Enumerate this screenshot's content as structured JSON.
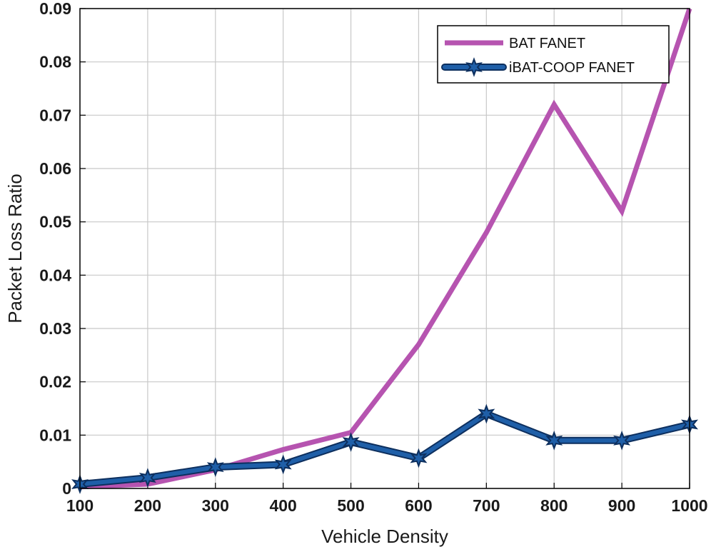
{
  "chart_data": {
    "type": "line",
    "title": "",
    "xlabel": "Vehicle Density",
    "ylabel": "Packet Loss Ratio",
    "x": [
      100,
      200,
      300,
      400,
      500,
      600,
      700,
      800,
      900,
      1000
    ],
    "xlim": [
      100,
      1000
    ],
    "ylim": [
      0,
      0.09
    ],
    "x_ticks": [
      "100",
      "200",
      "300",
      "400",
      "500",
      "600",
      "700",
      "800",
      "900",
      "1000"
    ],
    "y_ticks": [
      "0",
      "0.01",
      "0.02",
      "0.03",
      "0.04",
      "0.05",
      "0.06",
      "0.07",
      "0.08",
      "0.09"
    ],
    "grid": true,
    "legend_position": "top-right",
    "series": [
      {
        "name": "BAT FANET",
        "color": "#b654b0",
        "marker": "none",
        "values": [
          0.0003,
          0.0008,
          0.0035,
          0.0073,
          0.0105,
          0.027,
          0.048,
          0.072,
          0.052,
          0.09
        ]
      },
      {
        "name": "iBAT-COOP FANET",
        "color": "#1f5fa8",
        "marker": "star",
        "values": [
          0.0008,
          0.002,
          0.004,
          0.0045,
          0.0087,
          0.0057,
          0.014,
          0.009,
          0.009,
          0.012
        ]
      }
    ]
  }
}
